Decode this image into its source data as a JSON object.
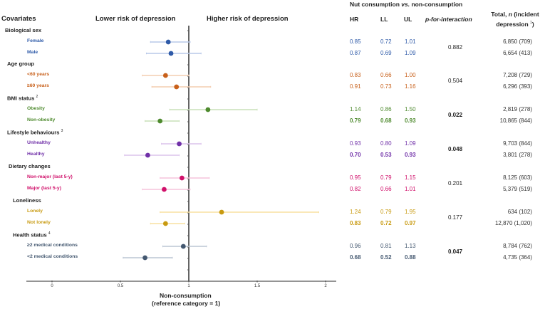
{
  "headers": {
    "covariates": "Covariates",
    "lower_risk": "Lower risk of depression",
    "higher_risk": "Higher risk of depression",
    "table_title_pre": "Nut consumption ",
    "table_title_vs": "vs.",
    "table_title_post": " non-consumption",
    "hr": "HR",
    "ll": "LL",
    "ul": "UL",
    "p_interaction": "p-for-interaction",
    "total_line1_pre": "Total, ",
    "total_line1_n": "n",
    "total_line1_post": " (incident",
    "total_line2": "depression ",
    "total_line2_sup": "1",
    "total_line2_close": ")"
  },
  "chart_data": {
    "type": "forest",
    "title": "",
    "xlabel": "Non-consumption",
    "xlabel2": "(reference category = 1)",
    "xlim": [
      -0.18,
      2.08
    ],
    "xticks": [
      "0",
      "0.5",
      "1",
      "1.5",
      "2"
    ],
    "xtick_values": [
      0,
      0.5,
      1,
      1.5,
      2
    ],
    "reference_line": 1,
    "groups": [
      {
        "name": "Biological sex",
        "sup": "",
        "color": "#2e5aa8",
        "ci_color": "#b8c8e8",
        "p_interaction": "0.882",
        "p_bold": false,
        "rows": [
          {
            "label": "Female",
            "hr": 0.85,
            "ll": 0.72,
            "ul": 1.01,
            "hr_text": "0.85",
            "ll_text": "0.72",
            "ul_text": "1.01",
            "total": "6,850 (709)",
            "bold": false
          },
          {
            "label": "Male",
            "hr": 0.87,
            "ll": 0.69,
            "ul": 1.09,
            "hr_text": "0.87",
            "ll_text": "0.69",
            "ul_text": "1.09",
            "total": "6,654 (413)",
            "bold": false
          }
        ]
      },
      {
        "name": "Age group",
        "sup": "",
        "color": "#c8601a",
        "ci_color": "#f4cdb0",
        "p_interaction": "0.504",
        "p_bold": false,
        "rows": [
          {
            "label": "<60 years",
            "hr": 0.83,
            "ll": 0.66,
            "ul": 1.0,
            "hr_text": "0.83",
            "ll_text": "0.66",
            "ul_text": "1.00",
            "total": "7,208 (729)",
            "bold": false
          },
          {
            "label": "≥60 years",
            "hr": 0.91,
            "ll": 0.73,
            "ul": 1.16,
            "hr_text": "0.91",
            "ll_text": "0.73",
            "ul_text": "1.16",
            "total": "6,296 (393)",
            "bold": false
          }
        ]
      },
      {
        "name": "BMI status",
        "sup": "2",
        "color": "#4e8a2e",
        "ci_color": "#c8e0b8",
        "p_interaction": "0.022",
        "p_bold": true,
        "rows": [
          {
            "label": "Obesity",
            "hr": 1.14,
            "ll": 0.86,
            "ul": 1.5,
            "hr_text": "1.14",
            "ll_text": "0.86",
            "ul_text": "1.50",
            "total": "2,819 (278)",
            "bold": false
          },
          {
            "label": "Non-obesity",
            "hr": 0.79,
            "ll": 0.68,
            "ul": 0.93,
            "hr_text": "0.79",
            "ll_text": "0.68",
            "ul_text": "0.93",
            "total": "10,865 (844)",
            "bold": true
          }
        ]
      },
      {
        "name": "Lifestyle behaviours",
        "sup": "3",
        "color": "#7030a8",
        "ci_color": "#dcc4ec",
        "p_interaction": "0.048",
        "p_bold": true,
        "rows": [
          {
            "label": "Unhealthy",
            "hr": 0.93,
            "ll": 0.8,
            "ul": 1.09,
            "hr_text": "0.93",
            "ll_text": "0.80",
            "ul_text": "1.09",
            "total": "9,703 (844)",
            "bold": false
          },
          {
            "label": "Healthy",
            "hr": 0.7,
            "ll": 0.53,
            "ul": 0.93,
            "hr_text": "0.70",
            "ll_text": "0.53",
            "ul_text": "0.93",
            "total": "3,801 (278)",
            "bold": true
          }
        ]
      },
      {
        "name": "Dietary changes",
        "sup": "",
        "color": "#d0106a",
        "ci_color": "#f6c4dc",
        "p_interaction": "0.201",
        "p_bold": false,
        "rows": [
          {
            "label": "Non-major (last 5-y)",
            "hr": 0.95,
            "ll": 0.79,
            "ul": 1.15,
            "hr_text": "0.95",
            "ll_text": "0.79",
            "ul_text": "1.15",
            "total": "8,125 (603)",
            "bold": false
          },
          {
            "label": "Major (last 5-y)",
            "hr": 0.82,
            "ll": 0.66,
            "ul": 1.01,
            "hr_text": "0.82",
            "ll_text": "0.66",
            "ul_text": "1.01",
            "total": "5,379 (519)",
            "bold": false
          }
        ]
      },
      {
        "name": "Loneliness",
        "sup": "",
        "color": "#c89a10",
        "ci_color": "#f8e0a0",
        "p_interaction": "0.177",
        "p_bold": false,
        "rows": [
          {
            "label": "Lonely",
            "hr": 1.24,
            "ll": 0.79,
            "ul": 1.95,
            "hr_text": "1.24",
            "ll_text": "0.79",
            "ul_text": "1.95",
            "total": "634 (102)",
            "bold": false
          },
          {
            "label": "Not lonely",
            "hr": 0.83,
            "ll": 0.72,
            "ul": 0.97,
            "hr_text": "0.83",
            "ll_text": "0.72",
            "ul_text": "0.97",
            "total": "12,870 (1,020)",
            "bold": true
          }
        ]
      },
      {
        "name": "Health status",
        "sup": "4",
        "color": "#445870",
        "ci_color": "#bcc6d4",
        "p_interaction": "0.047",
        "p_bold": true,
        "rows": [
          {
            "label": "≥2 medical conditions",
            "hr": 0.96,
            "ll": 0.81,
            "ul": 1.13,
            "hr_text": "0.96",
            "ll_text": "0.81",
            "ul_text": "1.13",
            "total": "8,784 (762)",
            "bold": false
          },
          {
            "label": "<2 medical conditions",
            "hr": 0.68,
            "ll": 0.52,
            "ul": 0.88,
            "hr_text": "0.68",
            "ll_text": "0.52",
            "ul_text": "0.88",
            "total": "4,735 (364)",
            "bold": true
          }
        ]
      }
    ]
  }
}
